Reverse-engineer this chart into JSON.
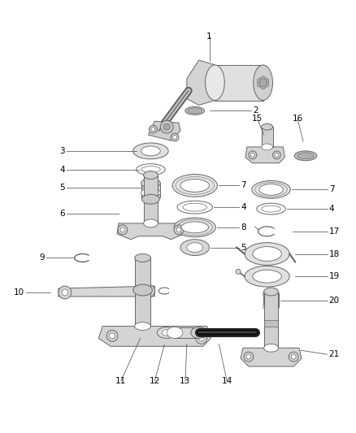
{
  "background_color": "#ffffff",
  "line_color": "#666666",
  "text_color": "#000000",
  "label_fontsize": 7.5,
  "figsize": [
    4.38,
    5.33
  ],
  "dpi": 100
}
